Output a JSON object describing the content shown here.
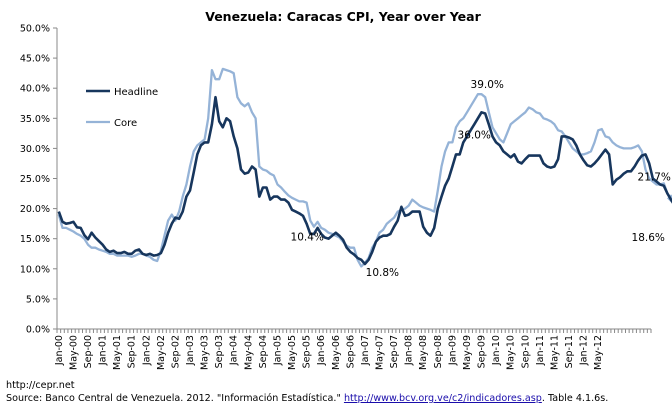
{
  "chart_data": {
    "type": "line",
    "title": "Venezuela: Caracas CPI, Year over Year",
    "xlabel": "",
    "ylabel": "",
    "ylim": [
      0,
      50
    ],
    "y_ticks": [
      "0.0%",
      "5.0%",
      "10.0%",
      "15.0%",
      "20.0%",
      "25.0%",
      "30.0%",
      "35.0%",
      "40.0%",
      "45.0%",
      "50.0%"
    ],
    "x_tick_labels": [
      "Jan-00",
      "May-00",
      "Sep-00",
      "Jan-01",
      "May-01",
      "Sep-01",
      "Jan-02",
      "May-02",
      "Sep-02",
      "Jan-03",
      "May-03",
      "Sep-03",
      "Jan-04",
      "May-04",
      "Sep-04",
      "Jan-05",
      "May-05",
      "Sep-05",
      "Jan-06",
      "May-06",
      "Sep-06",
      "Jan-07",
      "May-07",
      "Sep-07",
      "Jan-08",
      "May-08",
      "Sep-08",
      "Jan-09",
      "May-09",
      "Sep-09",
      "Jan-10",
      "May-10",
      "Sep-10",
      "Jan-11",
      "May-11",
      "Sep-11",
      "Jan-12",
      "May-12"
    ],
    "x_start": "Jan-00",
    "x_step": "monthly",
    "series": [
      {
        "name": "Headline",
        "color": "#17365D",
        "values": [
          19.5,
          17.8,
          17.5,
          17.6,
          17.8,
          16.9,
          16.8,
          15.6,
          14.9,
          16.0,
          15.2,
          14.6,
          14.0,
          13.2,
          12.8,
          13.0,
          12.6,
          12.6,
          12.8,
          12.5,
          12.5,
          13.0,
          13.2,
          12.5,
          12.3,
          12.5,
          12.2,
          12.3,
          12.6,
          14.0,
          16.0,
          17.5,
          18.5,
          18.3,
          19.5,
          22.0,
          23.0,
          26.0,
          29.0,
          30.5,
          31.0,
          31.0,
          34.0,
          38.5,
          34.5,
          33.5,
          35.0,
          34.5,
          32.0,
          30.0,
          26.5,
          25.8,
          26.0,
          27.0,
          26.5,
          22.0,
          23.5,
          23.5,
          21.5,
          22.0,
          22.0,
          21.5,
          21.5,
          21.0,
          19.8,
          19.5,
          19.2,
          18.8,
          17.5,
          15.8,
          15.8,
          16.8,
          15.8,
          15.2,
          15.0,
          15.5,
          16.0,
          15.5,
          14.8,
          13.5,
          12.8,
          12.4,
          11.8,
          11.5,
          10.8,
          11.5,
          12.8,
          14.5,
          15.2,
          15.5,
          15.5,
          15.8,
          17.0,
          18.0,
          20.3,
          18.8,
          19.0,
          19.5,
          19.5,
          19.5,
          17.0,
          16.0,
          15.5,
          16.8,
          20.0,
          22.0,
          23.8,
          25.0,
          27.0,
          29.0,
          29.0,
          31.0,
          32.0,
          33.0,
          34.0,
          35.0,
          36.0,
          35.8,
          34.0,
          32.0,
          31.0,
          30.5,
          29.5,
          29.0,
          28.5,
          29.0,
          27.8,
          27.5,
          28.2,
          28.8,
          28.8,
          28.8,
          28.8,
          27.5,
          27.0,
          26.8,
          27.0,
          28.2,
          32.0,
          32.0,
          31.8,
          31.5,
          30.5,
          29.0,
          28.0,
          27.2,
          27.0,
          27.5,
          28.2,
          29.0,
          29.8,
          29.0,
          24.0,
          24.8,
          25.2,
          25.8,
          26.2,
          26.2,
          27.0,
          28.0,
          28.8,
          29.0,
          27.5,
          25.0,
          24.5,
          24.0,
          23.8,
          22.5,
          21.5,
          20.5,
          18.6
        ],
        "end_label": "18.6%"
      },
      {
        "name": "Core",
        "color": "#95B3D7",
        "values": [
          19.0,
          16.8,
          16.8,
          16.5,
          16.2,
          15.8,
          15.5,
          15.0,
          14.0,
          13.5,
          13.5,
          13.2,
          13.0,
          12.8,
          12.5,
          12.5,
          12.2,
          12.2,
          12.2,
          12.2,
          12.0,
          12.2,
          12.5,
          12.5,
          12.2,
          12.0,
          11.5,
          11.3,
          13.0,
          15.5,
          18.0,
          19.0,
          18.0,
          19.5,
          22.0,
          24.0,
          27.0,
          29.5,
          30.5,
          31.0,
          31.5,
          35.0,
          43.0,
          41.5,
          41.5,
          43.2,
          43.0,
          42.8,
          42.5,
          38.5,
          37.5,
          37.0,
          37.5,
          36.0,
          35.0,
          27.0,
          26.5,
          26.3,
          25.8,
          25.5,
          24.0,
          23.5,
          22.8,
          22.2,
          21.8,
          21.5,
          21.2,
          21.2,
          21.0,
          18.0,
          17.0,
          17.8,
          16.8,
          16.5,
          16.0,
          15.8,
          15.5,
          15.2,
          14.5,
          13.8,
          13.5,
          13.5,
          11.5,
          10.4,
          11.0,
          11.8,
          13.5,
          14.5,
          16.0,
          16.5,
          17.5,
          18.0,
          18.5,
          19.5,
          19.8,
          20.0,
          20.5,
          21.5,
          21.0,
          20.5,
          20.2,
          20.0,
          19.8,
          19.5,
          23.0,
          27.0,
          29.5,
          31.0,
          31.0,
          33.5,
          34.5,
          35.0,
          36.0,
          37.0,
          38.0,
          39.0,
          39.0,
          38.5,
          36.0,
          33.5,
          32.5,
          31.5,
          31.0,
          32.5,
          34.0,
          34.5,
          35.0,
          35.5,
          36.0,
          36.8,
          36.5,
          36.0,
          35.8,
          35.0,
          34.8,
          34.5,
          34.0,
          33.0,
          32.8,
          32.0,
          31.0,
          30.0,
          29.5,
          29.0,
          29.0,
          29.2,
          29.5,
          31.0,
          33.0,
          33.2,
          32.0,
          31.8,
          31.0,
          30.5,
          30.2,
          30.0,
          30.0,
          30.0,
          30.2,
          30.5,
          29.5,
          26.5,
          25.0,
          24.5,
          24.0,
          24.0,
          24.2,
          22.5,
          21.7
        ],
        "end_label": "21.7%"
      }
    ],
    "annotations": [
      {
        "text": "10.4%",
        "x_index": 71,
        "y": 12.4
      },
      {
        "text": "10.8%",
        "x_index": 82,
        "y": 10.8
      },
      {
        "text": "39.0%",
        "x_index": 116,
        "y": 39.0
      },
      {
        "text": "36.0%",
        "x_index": 116,
        "y": 36.0
      },
      {
        "text": "21.7%",
        "x_index": 161,
        "y": 21.7
      },
      {
        "text": "18.6%",
        "x_index": 161,
        "y": 18.6
      }
    ],
    "legend": [
      "Headline",
      "Core"
    ],
    "legend_position": "top-left",
    "grid": false
  },
  "footer": {
    "url": "http://cepr.net",
    "source_prefix": "Source: Banco Central de Venezuela. 2012. \"Información Estadística.\" ",
    "source_link": "http://www.bcv.org.ve/c2/indicadores.asp",
    "source_suffix": ". Table 4.1.6s."
  }
}
